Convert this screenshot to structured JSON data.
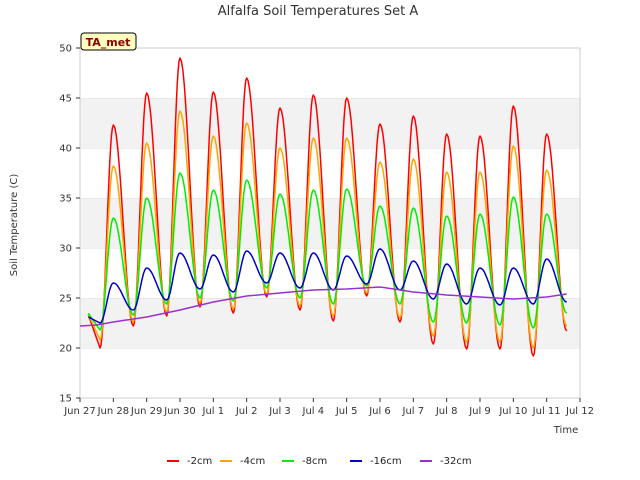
{
  "chart_data": {
    "type": "line",
    "title": "Alfalfa Soil Temperatures Set A",
    "xlabel": "Time",
    "ylabel": "Soil Temperature (C)",
    "site_label": "TA_met",
    "ylim": [
      15,
      50
    ],
    "xlim": [
      "2024-06-27",
      "2024-07-12"
    ],
    "y_ticks": [
      15,
      20,
      25,
      30,
      35,
      40,
      45,
      50
    ],
    "x_ticks": [
      "Jun 27",
      "Jun 28",
      "Jun 29",
      "Jun 30",
      "Jul 1",
      "Jul 2",
      "Jul 3",
      "Jul 4",
      "Jul 5",
      "Jul 6",
      "Jul 7",
      "Jul 8",
      "Jul 9",
      "Jul 10",
      "Jul 11",
      "Jul 12"
    ],
    "grid": "horizontal shaded bands",
    "legend_position": "bottom-center",
    "day_offsets": [
      0.6,
      1.6,
      2.6,
      3.6,
      4.6,
      5.6,
      6.6,
      7.6,
      8.6,
      9.6,
      10.6,
      11.6,
      12.6,
      13.6,
      14.6
    ],
    "series": [
      {
        "name": "-2cm",
        "color": "#ff0000",
        "max": [
          42.3,
          45.5,
          49.0,
          45.6,
          47.0,
          44.0,
          45.3,
          45.0,
          42.4,
          43.2,
          41.4,
          41.2,
          44.2,
          41.4
        ],
        "min": [
          20.0,
          22.2,
          23.2,
          24.1,
          23.5,
          25.1,
          23.8,
          22.7,
          25.2,
          22.6,
          20.4,
          19.9,
          19.9,
          19.2,
          21.7,
          22.1
        ]
      },
      {
        "name": "-4cm",
        "color": "#ffa500",
        "max": [
          38.2,
          40.5,
          43.7,
          41.2,
          42.5,
          40.0,
          41.0,
          41.0,
          38.6,
          38.9,
          37.6,
          37.6,
          40.2,
          37.8
        ],
        "min": [
          20.8,
          22.6,
          23.6,
          24.5,
          23.9,
          25.4,
          24.2,
          23.2,
          25.5,
          23.0,
          21.2,
          20.6,
          20.6,
          20.0,
          22.2,
          23.0
        ]
      },
      {
        "name": "-8cm",
        "color": "#00ee00",
        "max": [
          33.0,
          35.0,
          37.5,
          35.8,
          36.8,
          35.4,
          35.8,
          35.9,
          34.2,
          34.0,
          33.2,
          33.4,
          35.1,
          33.4
        ],
        "min": [
          21.8,
          23.3,
          24.4,
          25.0,
          24.7,
          26.0,
          25.0,
          24.4,
          26.2,
          24.4,
          22.6,
          22.5,
          22.3,
          22.0,
          23.5,
          24.6
        ]
      },
      {
        "name": "-16cm",
        "color": "#0000cc",
        "max": [
          26.5,
          28.0,
          29.5,
          29.3,
          29.7,
          29.5,
          29.5,
          29.2,
          29.9,
          28.7,
          28.4,
          28.0,
          28.0,
          28.9,
          28.2
        ],
        "min": [
          22.5,
          23.8,
          24.8,
          25.9,
          25.6,
          26.5,
          26.0,
          25.8,
          26.4,
          25.8,
          24.9,
          24.4,
          24.3,
          24.4,
          24.6,
          26.3
        ]
      },
      {
        "name": "-32cm",
        "color": "#9932cc",
        "x": [
          0.0,
          0.5,
          1.0,
          2.0,
          3.0,
          4.0,
          5.0,
          6.0,
          7.0,
          8.0,
          9.0,
          10.0,
          11.0,
          12.0,
          13.0,
          14.0,
          14.6
        ],
        "values": [
          22.2,
          22.3,
          22.6,
          23.1,
          23.8,
          24.6,
          25.2,
          25.5,
          25.8,
          25.9,
          26.1,
          25.6,
          25.3,
          25.1,
          24.9,
          25.1,
          25.4
        ]
      }
    ]
  }
}
